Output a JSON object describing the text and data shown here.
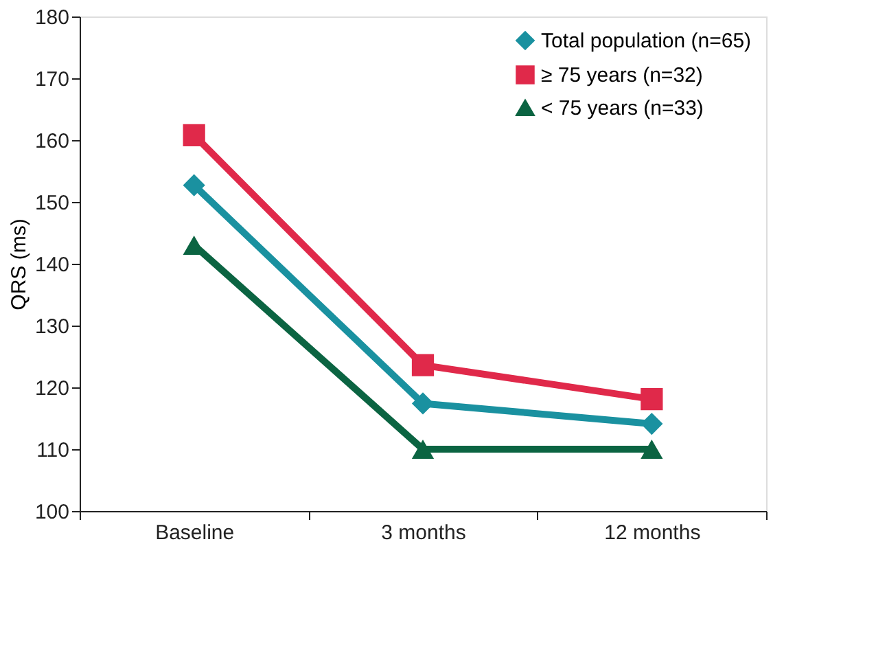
{
  "chart_data": {
    "type": "line",
    "ylabel": "QRS (ms)",
    "categories": [
      "Baseline",
      "3 months",
      "12 months"
    ],
    "series": [
      {
        "name": "Total population (n=65)",
        "color": "#1a91a0",
        "marker": "diamond",
        "values": [
          152.7,
          117.4,
          114.1
        ]
      },
      {
        "name": "≥ 75 years (n=32)",
        "color": "#e0294a",
        "marker": "square",
        "values": [
          160.8,
          123.6,
          118.1
        ]
      },
      {
        "name": "< 75 years (n=33)",
        "color": "#0b6442",
        "marker": "triangle",
        "values": [
          143.0,
          110.0,
          110.0
        ]
      }
    ],
    "ylim": [
      100,
      180
    ],
    "yticks": [
      100,
      110,
      120,
      130,
      140,
      150,
      160,
      170,
      180
    ],
    "grid": false,
    "legend": "top right",
    "line_style": "solid"
  }
}
